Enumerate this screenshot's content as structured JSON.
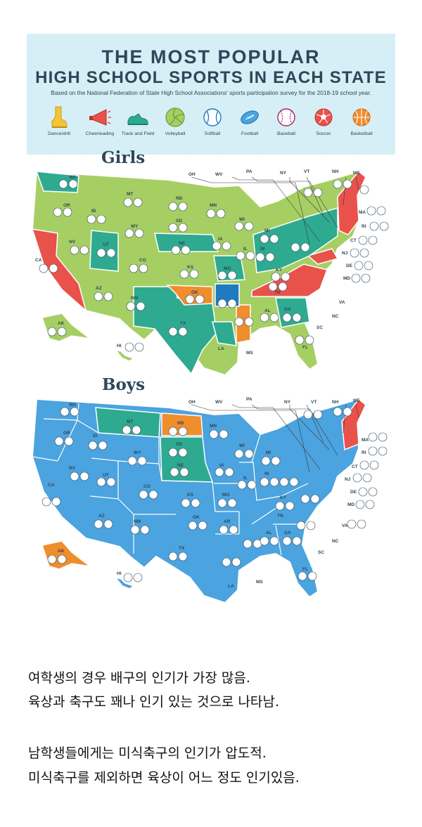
{
  "infographic": {
    "title_line1": "THE MOST POPULAR",
    "title_line2": "HIGH SCHOOL SPORTS IN EACH STATE",
    "subtitle": "Based on the National Federation of State High School Associations' sports participation survey for the 2018-19 school year.",
    "legend": [
      {
        "label": "Dance/drill",
        "icon": "boot-icon"
      },
      {
        "label": "Cheerleading",
        "icon": "megaphone-icon"
      },
      {
        "label": "Track and Field",
        "icon": "sneaker-icon"
      },
      {
        "label": "Volleyball",
        "icon": "volleyball-icon"
      },
      {
        "label": "Softball",
        "icon": "softball-icon"
      },
      {
        "label": "Football",
        "icon": "football-icon"
      },
      {
        "label": "Baseball",
        "icon": "baseball-icon"
      },
      {
        "label": "Soccer",
        "icon": "soccer-icon"
      },
      {
        "label": "Basketball",
        "icon": "basketball-icon"
      }
    ]
  },
  "maps": {
    "girls_heading": "Girls",
    "boys_heading": "Boys",
    "colors": {
      "volleyball": "#a6cf63",
      "track": "#2eaa91",
      "soccer": "#e9524a",
      "basketball": "#f08d2c",
      "softball": "#1f7bbf",
      "football": "#4ba3df",
      "baseball": "#a9286a"
    }
  },
  "state_labels": {
    "WA": "WA",
    "OR": "OR",
    "CA": "CA",
    "NV": "NV",
    "ID": "ID",
    "MT": "MT",
    "WY": "WY",
    "UT": "UT",
    "AZ": "AZ",
    "CO": "CO",
    "NM": "NM",
    "ND": "ND",
    "SD": "SD",
    "NE": "NE",
    "KS": "KS",
    "OK": "OK",
    "TX": "TX",
    "MN": "MN",
    "IA": "IA",
    "MO": "MO",
    "AR": "AR",
    "LA": "LA",
    "WI": "WI",
    "IL": "IL",
    "MS": "MS",
    "MI": "MI",
    "IN": "IN",
    "KY": "KY",
    "TN": "TN",
    "AL": "AL",
    "OH": "OH",
    "GA": "GA",
    "FL": "FL",
    "SC": "SC",
    "NC": "NC",
    "VA": "VA",
    "WV": "WV",
    "PA": "PA",
    "NY": "NY",
    "VT": "VT",
    "NH": "NH",
    "ME": "ME",
    "MA": "MA",
    "RI": "RI",
    "CT": "CT",
    "NJ": "NJ",
    "DE": "DE",
    "MD": "MD",
    "AK": "AK",
    "HI": "HI"
  },
  "commentary": {
    "line1": "여학생의 경우 배구의 인기가 가장 많음.",
    "line2": "육상과 축구도 꽤나 인기 있는 것으로 나타남.",
    "line3": "남학생들에게는 미식축구의 인기가 압도적.",
    "line4": "미식축구를 제외하면 육상이 어느 정도 인기있음."
  }
}
